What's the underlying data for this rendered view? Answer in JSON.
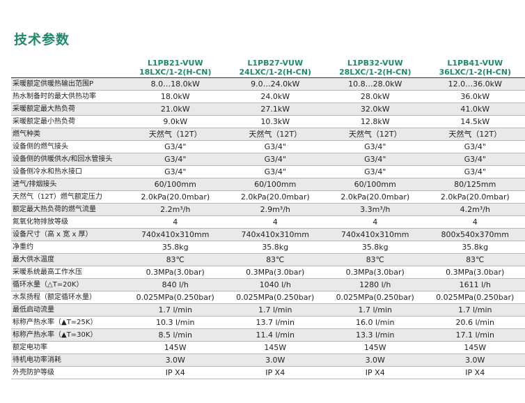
{
  "title": "技术参数",
  "headers": [
    [
      "L1PB21-VUW",
      "18LXC/1-2(H-CN)"
    ],
    [
      "L1PB27-VUW",
      "24LXC/1-2(H-CN)"
    ],
    [
      "L1PB32-VUW",
      "28LXC/1-2(H-CN)"
    ],
    [
      "L1PB41-VUW",
      "36LXC/1-2(H-CN)"
    ]
  ],
  "rows": [
    {
      "label": "采暖额定供暖热输出范围P",
      "values": [
        "8.0…18.0kW",
        "9.0…24.0kW",
        "10.8…28.0kW",
        "12.0…36.0kW"
      ]
    },
    {
      "label": "热水制备时的最大供热功率",
      "values": [
        "18.0kW",
        "24.0kW",
        "28.0kW",
        "36.0kW"
      ]
    },
    {
      "label": "采暖额定最大热负荷",
      "values": [
        "21.0kW",
        "27.1kW",
        "32.0kW",
        "41.0kW"
      ]
    },
    {
      "label": "采暖额定最小热负荷",
      "values": [
        "9.0kW",
        "10.3kW",
        "12.8kW",
        "14.5kW"
      ]
    },
    {
      "label": "燃气种类",
      "values": [
        "天然气（12T）",
        "天然气（12T）",
        "天然气（12T）",
        "天然气（12T）"
      ]
    },
    {
      "label": "设备侧的燃气接头",
      "values": [
        "G3/4\"",
        "G3/4\"",
        "G3/4\"",
        "G3/4\""
      ]
    },
    {
      "label": "设备侧的供暖供水/和回水管接头",
      "values": [
        "G3/4\"",
        "G3/4\"",
        "G3/4\"",
        "G3/4\""
      ]
    },
    {
      "label": "设备侧冷水和热水接口",
      "values": [
        "G3/4\"",
        "G3/4\"",
        "G3/4\"",
        "G3/4\""
      ]
    },
    {
      "label": "进气/排烟接头",
      "values": [
        "60/100mm",
        "60/100mm",
        "60/100mm",
        "80/125mm"
      ]
    },
    {
      "label": "天然气（12T）燃气额定压力",
      "values": [
        "2.0kPa(20.0mbar)",
        "2.0kPa(20.0mbar)",
        "2.0kPa(20.0mbar)",
        "2.0kPa(20.0mbar)"
      ]
    },
    {
      "label": "额定最大热负荷的燃气流量",
      "values": [
        "2.2m³/h",
        "2.9m³/h",
        "3.3m³/h",
        "4.2m³/h"
      ]
    },
    {
      "label": "氮氧化物排放等级",
      "values": [
        "4",
        "4",
        "4",
        "4"
      ]
    },
    {
      "label": "设备尺寸（高 x 宽 x 厚）",
      "values": [
        "740x410x310mm",
        "740x410x310mm",
        "740x410x310mm",
        "800x540x370mm"
      ]
    },
    {
      "label": "净重约",
      "values": [
        "35.8kg",
        "35.8kg",
        "35.8kg",
        "35.8kg"
      ]
    },
    {
      "label": "最大供水温度",
      "values": [
        "83℃",
        "83℃",
        "83℃",
        "83℃"
      ]
    },
    {
      "label": "采暖系统最高工作水压",
      "values": [
        "0.3MPa(3.0bar)",
        "0.3MPa(3.0bar)",
        "0.3MPa(3.0bar)",
        "0.3MPa(3.0bar)"
      ]
    },
    {
      "label": "循环水量（△T=20K）",
      "values": [
        "840 l/h",
        "1040 l/h",
        "1280 l/h",
        "1611 l/h"
      ]
    },
    {
      "label": "水泵扬程（额定循环水量）",
      "values": [
        "0.025MPa(0.250bar)",
        "0.025MPa(0.250bar)",
        "0.025MPa(0.250bar)",
        "0.025MPa(0.250bar)"
      ]
    },
    {
      "label": "最低启动流量",
      "values": [
        "1.7 l/min",
        "1.7 l/min",
        "1.7 l/min",
        "1.7 l/min"
      ]
    },
    {
      "label": "标称产热水率（▲T=25K）",
      "values": [
        "10.3 l/min",
        "13.7 l/min",
        "16.0 l/min",
        "20.6 l/min"
      ]
    },
    {
      "label": "标称产热水率（▲T=30K）",
      "values": [
        "8.5 l/min",
        "11.4 l/min",
        "13.3 l/min",
        "17.1 l/min"
      ]
    },
    {
      "label": "额定电功率",
      "values": [
        "145W",
        "145W",
        "145W",
        "145W"
      ]
    },
    {
      "label": "待机电功率消耗",
      "values": [
        "3.0W",
        "3.0W",
        "3.0W",
        "3.0W"
      ]
    },
    {
      "label": "外壳防护等级",
      "values": [
        "IP X4",
        "IP X4",
        "IP X4",
        "IP X4"
      ]
    }
  ]
}
